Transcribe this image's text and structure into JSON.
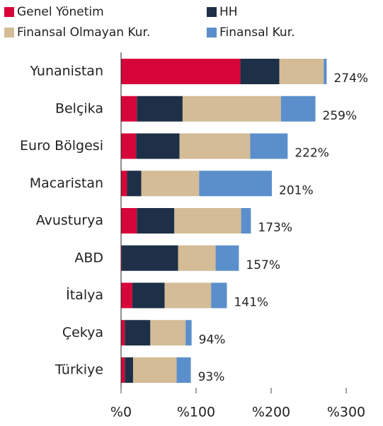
{
  "chart_data": {
    "type": "stacked_barh",
    "categories": [
      "Yunanistan",
      "Belçika",
      "Euro Bölgesi",
      "Macaristan",
      "Avusturya",
      "ABD",
      "İtalya",
      "Çekya",
      "Türkiye"
    ],
    "series": [
      {
        "name": "Genel Yönetim",
        "color": "#d7063a",
        "values": [
          159,
          21,
          20,
          8,
          21,
          1,
          15,
          5,
          5
        ]
      },
      {
        "name": "HH",
        "color": "#1e3048",
        "values": [
          52,
          61,
          58,
          19,
          50,
          75,
          43,
          34,
          11
        ]
      },
      {
        "name": "Finansal Olmayan Kur.",
        "color": "#d4bc96",
        "values": [
          59,
          131,
          94,
          77,
          89,
          50,
          62,
          47,
          58
        ]
      },
      {
        "name": "Finansal Kur.",
        "color": "#5b8fcc",
        "values": [
          4,
          46,
          50,
          97,
          13,
          31,
          21,
          8,
          19
        ]
      }
    ],
    "total_labels": [
      "274%",
      "259%",
      "222%",
      "201%",
      "173%",
      "157%",
      "141%",
      "94%",
      "93%"
    ],
    "xlim": [
      0,
      350
    ],
    "xticks": [
      {
        "value": 0,
        "label": "%0"
      },
      {
        "value": 100,
        "label": "%100"
      },
      {
        "value": 200,
        "label": "%200"
      },
      {
        "value": 300,
        "label": "%300"
      }
    ],
    "legend": "top"
  }
}
